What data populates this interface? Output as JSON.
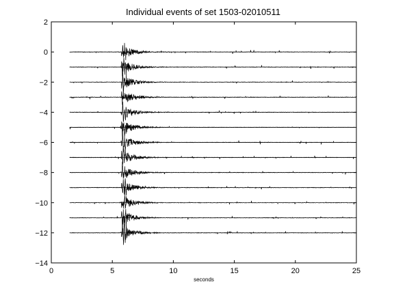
{
  "chart_data": {
    "type": "line",
    "title": "Individual events of set 1503-02010511",
    "xlabel": "seconds",
    "ylabel": "",
    "xlim": [
      0,
      25
    ],
    "ylim": [
      -14,
      2
    ],
    "x_ticks": [
      0,
      5,
      10,
      15,
      20,
      25
    ],
    "y_ticks": [
      2,
      0,
      -2,
      -4,
      -6,
      -8,
      -10,
      -12,
      -14
    ],
    "trace_x_range": [
      1.5,
      25
    ],
    "event_arrival_s": 5.8,
    "trace_offsets": [
      0,
      -1,
      -2,
      -3,
      -4,
      -5,
      -6,
      -7,
      -8,
      -9,
      -10,
      -11,
      -12
    ],
    "grid": false,
    "legend": "none",
    "line_color": "#000000"
  }
}
